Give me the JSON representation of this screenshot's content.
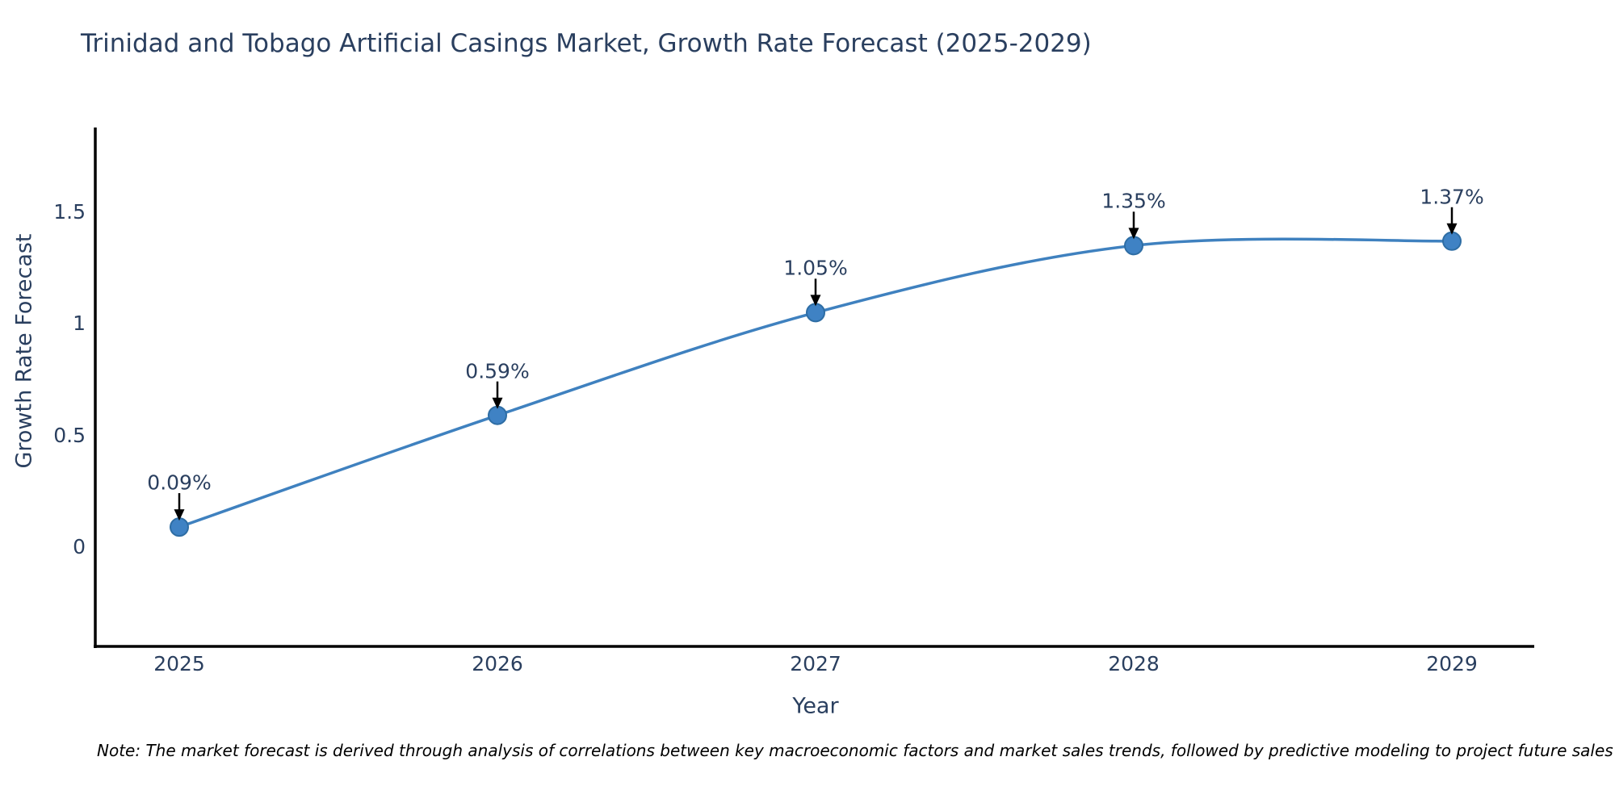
{
  "title": "Trinidad and Tobago Artificial Casings Market, Growth Rate Forecast (2025-2029)",
  "note": "Note: The market forecast is derived through analysis of correlations between key macroeconomic factors and market sales trends, followed by predictive modeling to project future sales",
  "chart_data": {
    "type": "line",
    "line_shape": "spline",
    "x": [
      2025,
      2026,
      2027,
      2028,
      2029
    ],
    "y": [
      0.09,
      0.59,
      1.05,
      1.35,
      1.37
    ],
    "point_labels": [
      "0.09%",
      "0.59%",
      "1.05%",
      "1.35%",
      "1.37%"
    ],
    "xtick_labels": [
      "2025",
      "2026",
      "2027",
      "2028",
      "2029"
    ],
    "yticks": [
      0,
      0.5,
      1,
      1.5
    ],
    "ytick_labels": [
      "0",
      "0.5",
      "1",
      "1.5"
    ],
    "xlabel": "Year",
    "ylabel": "Growth Rate Forecast",
    "ylim": [
      -0.45,
      1.88
    ],
    "grid": false,
    "legend": false,
    "colors": {
      "line": "#3f81bf",
      "marker_fill": "#3f82c4",
      "marker_stroke": "#2e6da4",
      "axis": "#000000",
      "arrow": "#000000",
      "text": "#2a3f5f",
      "note_text": "#000000",
      "background": "#ffffff"
    }
  }
}
